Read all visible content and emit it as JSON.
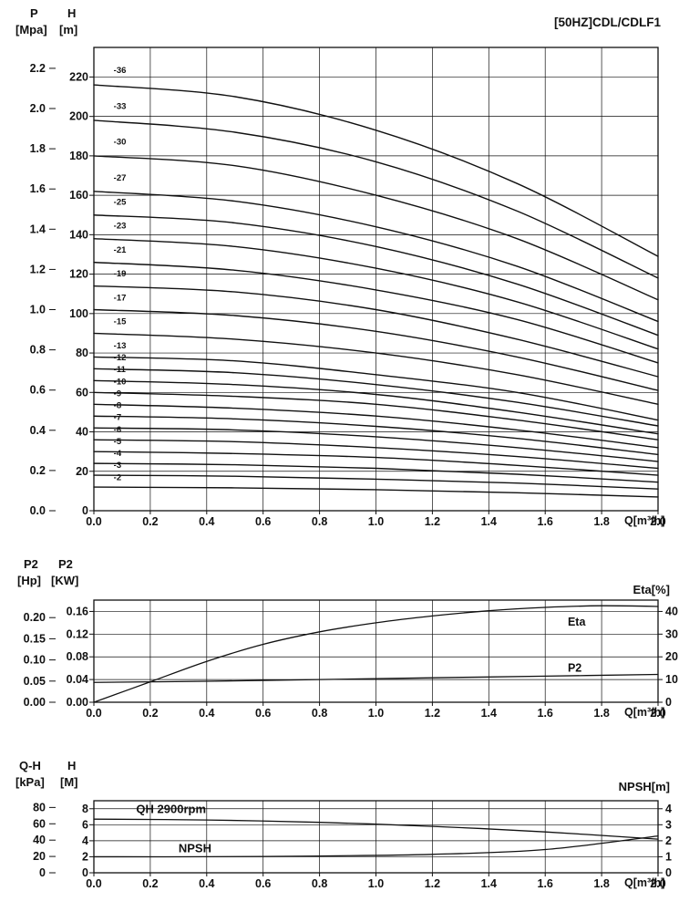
{
  "page": {
    "background": "#ffffff",
    "ink": "#111111"
  },
  "headers": {
    "hq": {
      "left1": "P",
      "left1u": "[Mpa]",
      "left2": "H",
      "left2u": "[m]",
      "title": "[50HZ]CDL/CDLF1",
      "q": "Q[m³/h]"
    },
    "pe": {
      "left1": "P2",
      "left1u": "[Hp]",
      "left2": "P2",
      "left2u": "[KW]",
      "right": "Eta[%]",
      "q": "Q[m³/h]"
    },
    "qh": {
      "left1": "Q-H",
      "left1u": "[kPa]",
      "left2": "H",
      "left2u": "[M]",
      "right": "NPSH[m]",
      "q": "Q[m³/h]"
    }
  },
  "x_axis": {
    "min": 0,
    "max": 2,
    "tick_labels": [
      "0.0",
      "0.2",
      "0.4",
      "0.6",
      "0.8",
      "1.0",
      "1.2",
      "1.4",
      "1.6",
      "1.8",
      "2.0"
    ],
    "unit_label": "Q[m³/h]"
  },
  "chart_data": [
    {
      "id": "hq",
      "type": "line",
      "title": "[50HZ]CDL/CDLF1",
      "xlabel": "Q[m³/h]",
      "ylabel": "H [m] / P [Mpa]",
      "ylim": [
        0,
        235
      ],
      "grid_values": [
        20,
        40,
        60,
        80,
        100,
        120,
        140,
        160,
        180,
        200,
        220
      ],
      "axes": {
        "h": 1,
        "p": 102
      },
      "left_axes": [
        {
          "id": "p",
          "title": "P",
          "unit": "[Mpa]",
          "tick_labels": [
            "0.0",
            "0.2",
            "0.4",
            "0.6",
            "0.8",
            "1.0",
            "1.2",
            "1.4",
            "1.6",
            "1.8",
            "2.0",
            "2.2"
          ]
        },
        {
          "id": "h",
          "title": "H",
          "unit": "[m]",
          "tick_labels": [
            "0",
            "20",
            "40",
            "60",
            "80",
            "100",
            "120",
            "140",
            "160",
            "180",
            "200",
            "220"
          ]
        }
      ],
      "q_points": [
        0,
        0.5,
        1.0,
        1.5,
        2.0
      ],
      "series": [
        {
          "label": "-36",
          "axis": "h",
          "v": [
            216,
            210,
            193,
            166,
            129
          ]
        },
        {
          "label": "-33",
          "axis": "h",
          "v": [
            198,
            192,
            177,
            152,
            118
          ]
        },
        {
          "label": "-30",
          "axis": "h",
          "v": [
            180,
            175,
            160,
            138,
            107
          ]
        },
        {
          "label": "-27",
          "axis": "h",
          "v": [
            162,
            157,
            144,
            124,
            96
          ]
        },
        {
          "label": "-25",
          "axis": "h",
          "v": [
            150,
            146,
            134,
            115,
            89
          ]
        },
        {
          "label": "-23",
          "axis": "h",
          "v": [
            138,
            134,
            123,
            106,
            82
          ]
        },
        {
          "label": "-21",
          "axis": "h",
          "v": [
            126,
            122,
            112,
            97,
            75
          ]
        },
        {
          "label": "-19",
          "axis": "h",
          "v": [
            114,
            111,
            102,
            87,
            68
          ]
        },
        {
          "label": "-17",
          "axis": "h",
          "v": [
            102,
            99,
            91,
            78,
            61
          ]
        },
        {
          "label": "-15",
          "axis": "h",
          "v": [
            90,
            87,
            80,
            69,
            54
          ]
        },
        {
          "label": "-13",
          "axis": "h",
          "v": [
            78,
            76,
            69,
            60,
            46
          ]
        },
        {
          "label": "-12",
          "axis": "h",
          "v": [
            72,
            70,
            64,
            55,
            43
          ]
        },
        {
          "label": "-11",
          "axis": "h",
          "v": [
            66,
            64,
            59,
            50,
            39
          ]
        },
        {
          "label": "-10",
          "axis": "h",
          "v": [
            60,
            58,
            54,
            46,
            36
          ]
        },
        {
          "label": "-9",
          "axis": "h",
          "v": [
            54,
            52,
            48,
            41,
            32
          ]
        },
        {
          "label": "-8",
          "axis": "h",
          "v": [
            48,
            46.6,
            42.8,
            36.7,
            28.5
          ]
        },
        {
          "label": "-7",
          "axis": "h",
          "v": [
            42,
            41,
            37.5,
            32,
            25
          ]
        },
        {
          "label": "-6",
          "axis": "h",
          "v": [
            36,
            35,
            32,
            27.5,
            21.5
          ]
        },
        {
          "label": "-5",
          "axis": "h",
          "v": [
            30,
            29,
            27,
            23,
            18
          ]
        },
        {
          "label": "-4",
          "axis": "h",
          "v": [
            24,
            23.3,
            21.5,
            18.5,
            14.5
          ]
        },
        {
          "label": "-3",
          "axis": "h",
          "v": [
            18,
            17.5,
            16,
            14,
            11
          ]
        },
        {
          "label": "-2",
          "axis": "h",
          "v": [
            12,
            11.6,
            10.7,
            9.1,
            7
          ]
        }
      ]
    },
    {
      "id": "pe",
      "type": "line",
      "xlabel": "Q[m³/h]",
      "ylabel": "P2 [KW] / P2 [Hp]",
      "ylim": [
        0,
        0.18
      ],
      "grid_values": [
        0.04,
        0.08,
        0.12,
        0.16
      ],
      "axes": {
        "kw": 1,
        "hp": 0.7457,
        "eta": 0.004
      },
      "left_axes": [
        {
          "id": "hp",
          "title": "P2",
          "unit": "[Hp]",
          "tick_labels": [
            "0.00",
            "0.05",
            "0.10",
            "0.15",
            "0.20"
          ]
        },
        {
          "id": "kw",
          "title": "P2",
          "unit": "[KW]",
          "tick_labels": [
            "0.00",
            "0.04",
            "0.08",
            "0.12",
            "0.16"
          ]
        }
      ],
      "right_axis": {
        "label": "Eta[%]",
        "axis": "eta",
        "factor": 0.004,
        "tick_labels": [
          "0",
          "10",
          "20",
          "30",
          "40"
        ]
      },
      "series": [
        {
          "label": "Eta",
          "axis": "eta",
          "q": [
            0,
            0.2,
            0.4,
            0.6,
            0.8,
            1.0,
            1.2,
            1.4,
            1.6,
            1.8,
            2.0
          ],
          "v": [
            0,
            9,
            18,
            25.5,
            31,
            35,
            38,
            40.3,
            41.8,
            42.5,
            42.2
          ]
        },
        {
          "label": "P2",
          "axis": "kw",
          "q": [
            0,
            0.4,
            0.8,
            1.2,
            1.6,
            2.0
          ],
          "v": [
            0.035,
            0.037,
            0.04,
            0.043,
            0.046,
            0.049
          ]
        }
      ],
      "annotations": [
        {
          "text": "Eta",
          "q": 1.68,
          "axis": "kw",
          "v": 0.135
        },
        {
          "text": "P2",
          "q": 1.68,
          "axis": "kw",
          "v": 0.0535
        }
      ]
    },
    {
      "id": "qh",
      "type": "line",
      "xlabel": "Q[m³/h]",
      "ylabel": "H [M] / Q-H [kPa]",
      "ylim": [
        0,
        9
      ],
      "grid_values": [
        2,
        4,
        6,
        8
      ],
      "axes": {
        "m": 1,
        "kpa": 0.102,
        "npsh": 2
      },
      "left_axes": [
        {
          "id": "kpa",
          "title": "Q-H",
          "unit": "[kPa]",
          "tick_labels": [
            "0",
            "20",
            "40",
            "60",
            "80"
          ]
        },
        {
          "id": "m",
          "title": "H",
          "unit": "[M]",
          "tick_labels": [
            "0",
            "2",
            "4",
            "6",
            "8"
          ]
        }
      ],
      "right_axis": {
        "label": "NPSH[m]",
        "axis": "npsh",
        "factor": 2,
        "tick_labels": [
          "0",
          "1",
          "2",
          "3",
          "4"
        ]
      },
      "series": [
        {
          "label": "QH",
          "axis": "m",
          "q": [
            0,
            0.4,
            0.8,
            1.2,
            1.6,
            2.0
          ],
          "v": [
            6.7,
            6.6,
            6.3,
            5.8,
            5.1,
            4.2
          ]
        },
        {
          "label": "NPSH",
          "axis": "npsh",
          "q": [
            0,
            0.4,
            0.8,
            1.2,
            1.6,
            2.0
          ],
          "v": [
            1.0,
            1.0,
            1.05,
            1.15,
            1.45,
            2.3
          ]
        }
      ],
      "annotations": [
        {
          "text": "QH 2900rpm",
          "q": 0.15,
          "axis": "m",
          "v": 7.45,
          "size": 13
        },
        {
          "text": "NPSH",
          "q": 0.3,
          "axis": "m",
          "v": 2.55,
          "size": 13
        }
      ]
    }
  ]
}
